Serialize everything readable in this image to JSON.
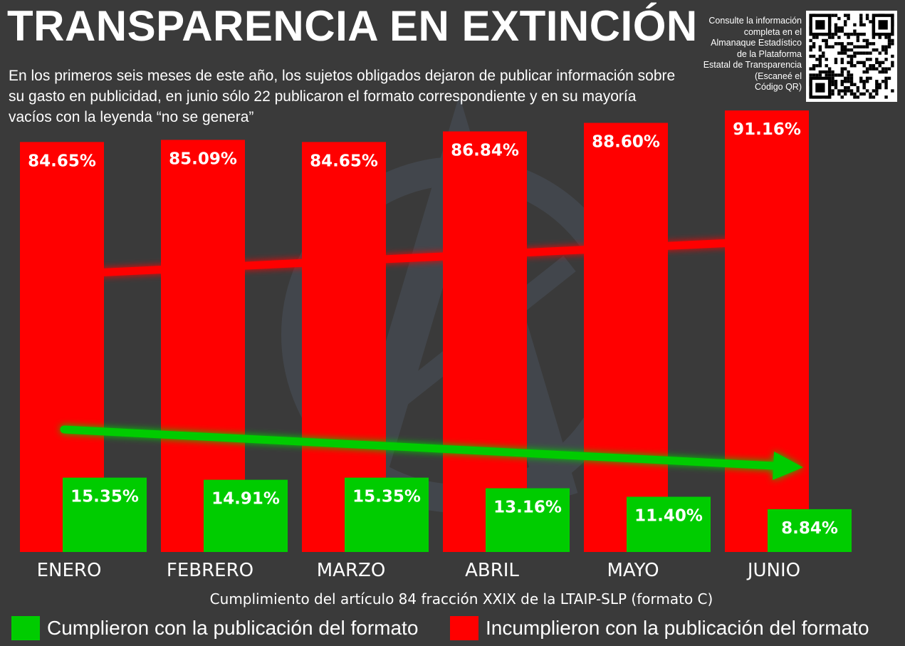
{
  "header": {
    "title": "TRANSPARENCIA EN EXTINCIÓN",
    "subtitle": "En los primeros seis meses de este año, los sujetos obligados  dejaron de publicar información sobre su gasto en publicidad, en junio sólo 22 publicaron el formato correspondiente y en su mayoría vacíos con la leyenda “no se genera”"
  },
  "qr_note": {
    "lines": [
      "Consulte la información",
      "completa en el",
      "Almanaque Estadístico",
      "de la Plataforma",
      "Estatal de Transparencia",
      "(Escaneé el",
      "Código QR)"
    ],
    "icon": "qr-code-icon"
  },
  "colors": {
    "background": "#3a3a3a",
    "incumplieron": "#ff0000",
    "cumplieron": "#00cc00",
    "text": "#ffffff"
  },
  "chart_data": {
    "type": "bar",
    "categories": [
      "ENERO",
      "FEBRERO",
      "MARZO",
      "ABRIL",
      "MAYO",
      "JUNIO"
    ],
    "series": [
      {
        "name": "Incumplieron con la publicación del formato",
        "color": "#ff0000",
        "values": [
          84.65,
          85.09,
          84.65,
          86.84,
          88.6,
          91.16
        ],
        "labels": [
          "84.65%",
          "85.09%",
          "84.65%",
          "86.84%",
          "88.60%",
          "91.16%"
        ]
      },
      {
        "name": "Cumplieron con la publicación del formato",
        "color": "#00cc00",
        "values": [
          15.35,
          14.91,
          15.35,
          13.16,
          11.4,
          8.84
        ],
        "labels": [
          "15.35%",
          "14.91%",
          "15.35%",
          "13.16%",
          "11.40%",
          "8.84%"
        ]
      }
    ],
    "title": "TRANSPARENCIA EN EXTINCIÓN",
    "xlabel": "Cumplimiento del artículo 84 fracción XXIX de la LTAIP-SLP (formato C)",
    "ylabel": "",
    "trend_arrows": [
      {
        "series": "Incumplieron con la publicación del formato",
        "direction": "up"
      },
      {
        "series": "Cumplieron con la publicación del formato",
        "direction": "down"
      }
    ],
    "grid": false,
    "legend": "bottom"
  },
  "legend": {
    "items": [
      {
        "label": "Cumplieron con la publicación del formato",
        "color": "#00cc00"
      },
      {
        "label": "Incumplieron con la publicación del formato",
        "color": "#ff0000"
      }
    ]
  }
}
